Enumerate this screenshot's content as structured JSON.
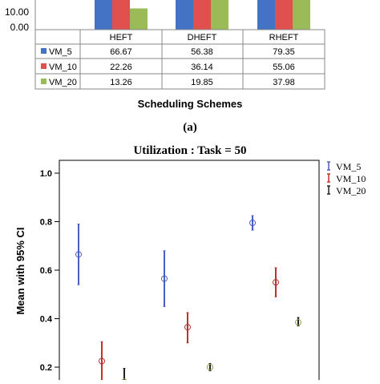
{
  "chart_data": [
    {
      "type": "bar",
      "y_axis_ticks": [
        "10.00",
        "0.00"
      ],
      "categories": [
        "HEFT",
        "DHEFT",
        "RHEFT"
      ],
      "series": [
        {
          "name": "VM_5",
          "color": "#4472c4",
          "values": [
            66.67,
            56.38,
            79.35
          ]
        },
        {
          "name": "VM_10",
          "color": "#e0504f",
          "values": [
            22.26,
            36.14,
            55.06
          ]
        },
        {
          "name": "VM_20",
          "color": "#9bbb59",
          "values": [
            13.26,
            19.85,
            37.98
          ]
        }
      ],
      "table": [
        [
          "66.67",
          "56.38",
          "79.35"
        ],
        [
          "22.26",
          "36.14",
          "55.06"
        ],
        [
          "13.26",
          "19.85",
          "37.98"
        ]
      ],
      "xlabel": "Scheduling Schemes",
      "caption": "(a)"
    },
    {
      "type": "scatter",
      "title": "Utilization : Task = 50",
      "ylabel": "Mean with 95% CI",
      "y_ticks": [
        "1.0",
        "0.8",
        "0.6",
        "0.4",
        "0.2"
      ],
      "ylim": [
        0.15,
        1.07
      ],
      "series": [
        {
          "name": "VM_5",
          "color": "#4a5fbf",
          "points": [
            {
              "x": 1,
              "mean": 0.665,
              "lo": 0.54,
              "hi": 0.79
            },
            {
              "x": 2,
              "mean": 0.565,
              "lo": 0.45,
              "hi": 0.68
            },
            {
              "x": 3,
              "mean": 0.795,
              "lo": 0.765,
              "hi": 0.825
            }
          ]
        },
        {
          "name": "VM_10",
          "color": "#c0312b",
          "points": [
            {
              "x": 1,
              "mean": 0.225,
              "lo": 0.14,
              "hi": 0.305
            },
            {
              "x": 2,
              "mean": 0.365,
              "lo": 0.3,
              "hi": 0.425
            },
            {
              "x": 3,
              "mean": 0.55,
              "lo": 0.49,
              "hi": 0.61
            }
          ]
        },
        {
          "name": "VM_20",
          "color": "#222222",
          "points": [
            {
              "x": 1,
              "mean": 0.14,
              "lo": 0.08,
              "hi": 0.195
            },
            {
              "x": 2,
              "mean": 0.2,
              "lo": 0.185,
              "hi": 0.215
            },
            {
              "x": 3,
              "mean": 0.385,
              "lo": 0.37,
              "hi": 0.405
            }
          ]
        }
      ],
      "legend_position": "top-right"
    }
  ]
}
